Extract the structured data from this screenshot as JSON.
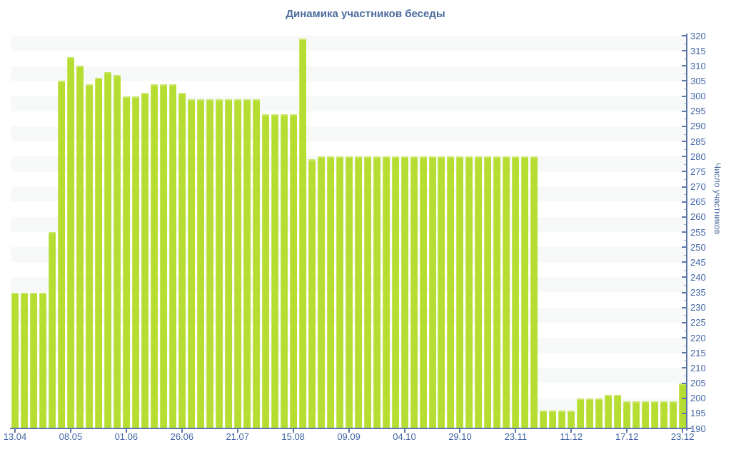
{
  "title": "Динамика участников беседы",
  "colors": {
    "bar": "#b6de32",
    "stripe": "#f7f8f8",
    "stripe_alt": "#ffffff",
    "axis": "#5f76ab",
    "minor_tick": "#93a5c8",
    "tick_label": "#4164a4",
    "title_text": "#4a6a9d"
  },
  "chart_data": {
    "type": "bar",
    "title": "Динамика участников беседы",
    "xlabel": "",
    "ylabel": "Число участников",
    "ylim": [
      190,
      320
    ],
    "y_tick_step": 5,
    "y_ticks": [
      190,
      195,
      200,
      205,
      210,
      215,
      220,
      225,
      230,
      235,
      240,
      245,
      250,
      255,
      260,
      265,
      270,
      275,
      280,
      285,
      290,
      295,
      300,
      305,
      310,
      315,
      320
    ],
    "legend": "none",
    "grid": "striped-bands",
    "x_tick_labels": [
      "13.04",
      "08.05",
      "01.06",
      "26.06",
      "21.07",
      "15.08",
      "09.09",
      "04.10",
      "29.10",
      "23.11",
      "11.12",
      "17.12",
      "23.12"
    ],
    "x_tick_indices": [
      0,
      6,
      12,
      18,
      24,
      30,
      36,
      42,
      48,
      54,
      60,
      66,
      72
    ],
    "values": [
      235,
      235,
      235,
      235,
      255,
      305,
      313,
      310,
      304,
      306,
      308,
      307,
      300,
      300,
      301,
      304,
      304,
      304,
      301,
      299,
      299,
      299,
      299,
      299,
      299,
      299,
      299,
      294,
      294,
      294,
      294,
      319,
      279,
      280,
      280,
      280,
      280,
      280,
      280,
      280,
      280,
      280,
      280,
      280,
      280,
      280,
      280,
      280,
      280,
      280,
      280,
      280,
      280,
      280,
      280,
      280,
      280,
      196,
      196,
      196,
      196,
      200,
      200,
      200,
      201,
      201,
      199,
      199,
      199,
      199,
      199,
      199,
      205
    ]
  }
}
